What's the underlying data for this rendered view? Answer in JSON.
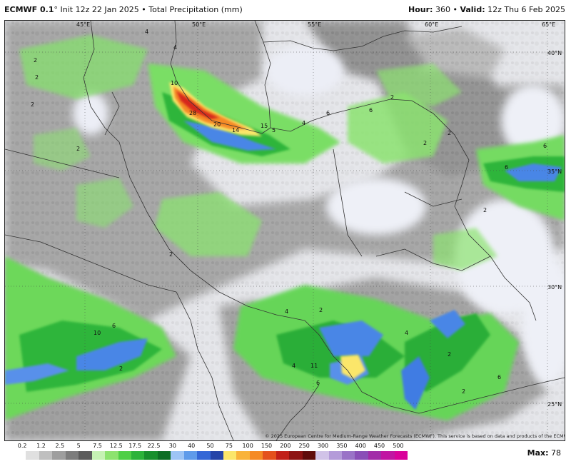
{
  "header": {
    "model": "ECMWF 0.1",
    "degree": "°",
    "init": "Init 12z 22 Jan 2025",
    "bullet": "•",
    "product": "Total Precipitation (mm)",
    "hour_label": "Hour:",
    "hour_value": "360",
    "valid_label": "Valid:",
    "valid_value": "12z Thu 6 Feb 2025"
  },
  "map": {
    "lon_labels": [
      "45°E",
      "50°E",
      "55°E",
      "60°E",
      "65°E"
    ],
    "lat_labels": [
      "40°N",
      "35°N",
      "30°N",
      "25°N"
    ],
    "contour_labels": [
      "2",
      "4",
      "2",
      "4",
      "2",
      "2",
      "10",
      "28",
      "20",
      "14",
      "15",
      "5",
      "6",
      "4",
      "6",
      "2",
      "2",
      "2",
      "6",
      "6",
      "2",
      "2",
      "4",
      "2",
      "4",
      "2",
      "2",
      "6",
      "10",
      "6",
      "4",
      "11",
      "6",
      "2"
    ],
    "copyright": "© 2025 European Centre for Medium-Range Weather Forecasts (ECMWF). This service is based on data and products of the ECMWF.",
    "colors": {
      "background": "#f2f3f8",
      "light_gray": "#c8c8c8",
      "mid_gray": "#9a9a9a",
      "dark_gray": "#6e6e6e",
      "light_green": "#8de36f",
      "green": "#34c03a",
      "dark_green": "#17a42d",
      "blue": "#3c7be5",
      "light_blue": "#9dc4f5",
      "yellow": "#fbe66a",
      "orange": "#f58a25",
      "red": "#d6251c",
      "border": "#333333"
    }
  },
  "colorbar": {
    "labels": [
      "0.2",
      "1.2",
      "2.5",
      "5",
      "7.5",
      "12.5",
      "17.5",
      "22.5",
      "30",
      "40",
      "50",
      "75",
      "100",
      "150",
      "200",
      "250",
      "300",
      "350",
      "400",
      "450",
      "500"
    ],
    "colors": [
      "#ffffff",
      "#e0e0e0",
      "#bfbfbf",
      "#9e9e9e",
      "#7d7d7d",
      "#5c5c5c",
      "#c6f2b4",
      "#8de36f",
      "#4fcf46",
      "#2cb33a",
      "#178f2c",
      "#0d6e24",
      "#9dc4f5",
      "#5f9bea",
      "#3467d6",
      "#2544a8",
      "#fbe66a",
      "#f9b33a",
      "#f58a25",
      "#e4511d",
      "#c1201a",
      "#8e1313",
      "#600b0b",
      "#d1c3e8",
      "#b49bd9",
      "#9a73c7",
      "#8a4fb7",
      "#a22da8",
      "#c016a2",
      "#d9029b"
    ]
  },
  "max": {
    "label": "Max:",
    "value": "78"
  }
}
